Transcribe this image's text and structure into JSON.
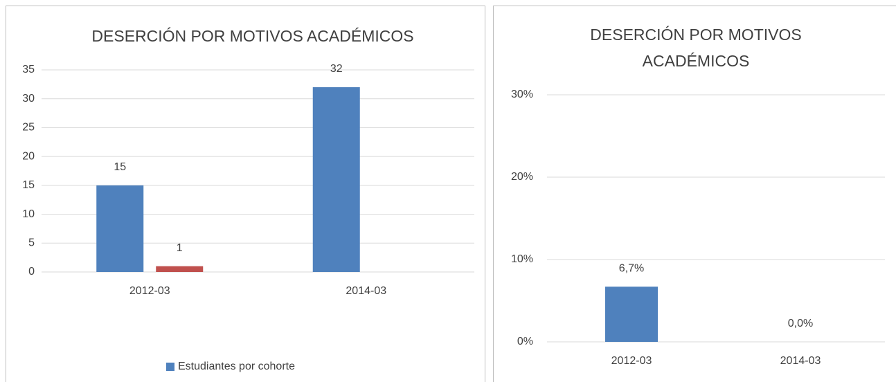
{
  "chart_data": [
    {
      "type": "bar",
      "title": "DESERCIÓN POR MOTIVOS ACADÉMICOS",
      "categories": [
        "2012-03",
        "2014-03"
      ],
      "series": [
        {
          "name": "Estudiantes por cohorte",
          "color": "#4f81bd",
          "values": [
            15,
            32
          ]
        },
        {
          "color": "#c0504d",
          "values": [
            1,
            null
          ]
        }
      ],
      "ylim": [
        0,
        35
      ],
      "yticks": [
        0,
        5,
        10,
        15,
        20,
        25,
        30,
        35
      ],
      "grid": true,
      "legend": "bottom"
    },
    {
      "type": "bar",
      "title": "DESERCIÓN POR MOTIVOS ACADÉMICOS",
      "categories": [
        "2012-03",
        "2014-03"
      ],
      "series": [
        {
          "color": "#4f81bd",
          "values": [
            6.7,
            0.0
          ],
          "value_labels": [
            "6,7%",
            "0,0%"
          ]
        }
      ],
      "ylim": [
        0,
        30
      ],
      "yticks": [
        {
          "value": 0,
          "label": "0%"
        },
        {
          "value": 10,
          "label": "10%"
        },
        {
          "value": 20,
          "label": "20%"
        },
        {
          "value": 30,
          "label": "30%"
        }
      ],
      "grid": true
    }
  ]
}
